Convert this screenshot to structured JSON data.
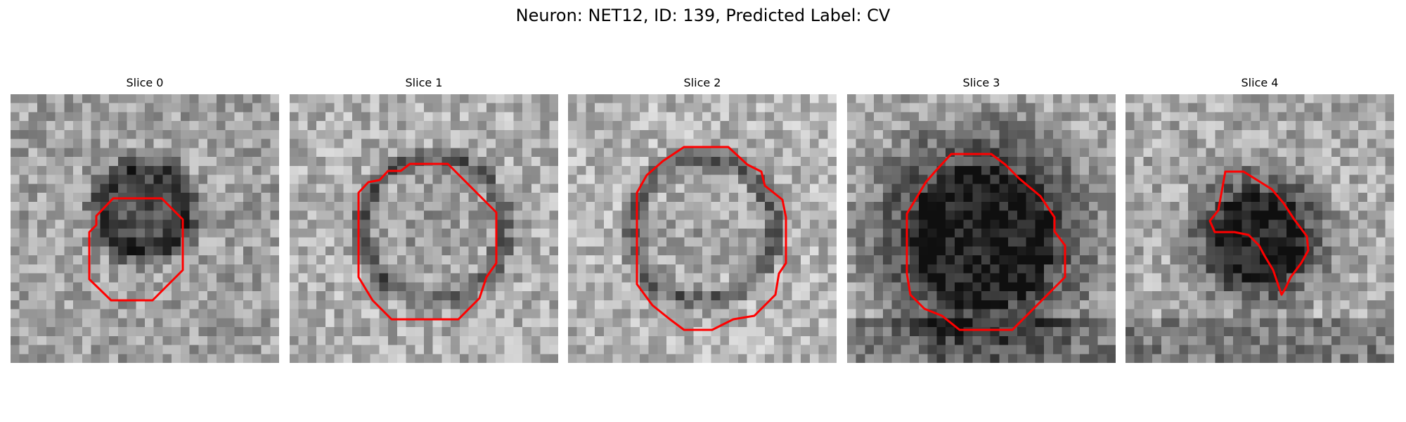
{
  "figure": {
    "title": "Neuron: NET12, ID: 139, Predicted Label: CV"
  },
  "slices": [
    {
      "title": "Slice 0"
    },
    {
      "title": "Slice 1"
    },
    {
      "title": "Slice 2"
    },
    {
      "title": "Slice 3"
    },
    {
      "title": "Slice 4"
    }
  ],
  "style": {
    "contour_color": "#ff0000",
    "colormap": "gray"
  }
}
